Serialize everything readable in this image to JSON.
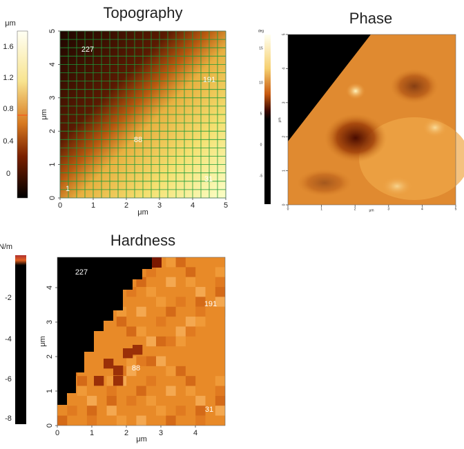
{
  "topography": {
    "title": "Topography",
    "colorbar": {
      "unit": "μm",
      "ticks": [
        1.6,
        1.2,
        0.8,
        0.4,
        0
      ]
    },
    "x_axis": {
      "label": "μm",
      "ticks": [
        0,
        1,
        2,
        3,
        4,
        5
      ]
    },
    "y_axis": {
      "label": "μm",
      "ticks": [
        0,
        1,
        2,
        3,
        4,
        5
      ]
    },
    "points": [
      227,
      191,
      88,
      31,
      1
    ]
  },
  "phase": {
    "title": "Phase",
    "colorbar": {
      "unit": "deg",
      "ticks": [
        15,
        10,
        5,
        0,
        -5
      ]
    },
    "x_axis": {
      "label": "μm",
      "ticks": [
        0,
        1,
        2,
        3,
        4,
        5
      ]
    },
    "y_axis": {
      "label": "μm",
      "ticks": [
        0,
        1,
        2,
        3,
        4,
        5
      ]
    }
  },
  "hardness": {
    "title": "Hardness",
    "colorbar": {
      "unit": "N/m",
      "ticks": [
        -2,
        -4,
        -6,
        -8
      ]
    },
    "x_axis": {
      "label": "μm",
      "ticks": [
        0,
        1,
        2,
        3,
        4
      ]
    },
    "y_axis": {
      "label": "μm",
      "ticks": [
        0,
        1,
        2,
        3,
        4
      ]
    },
    "points": [
      227,
      191,
      88,
      31
    ]
  }
}
